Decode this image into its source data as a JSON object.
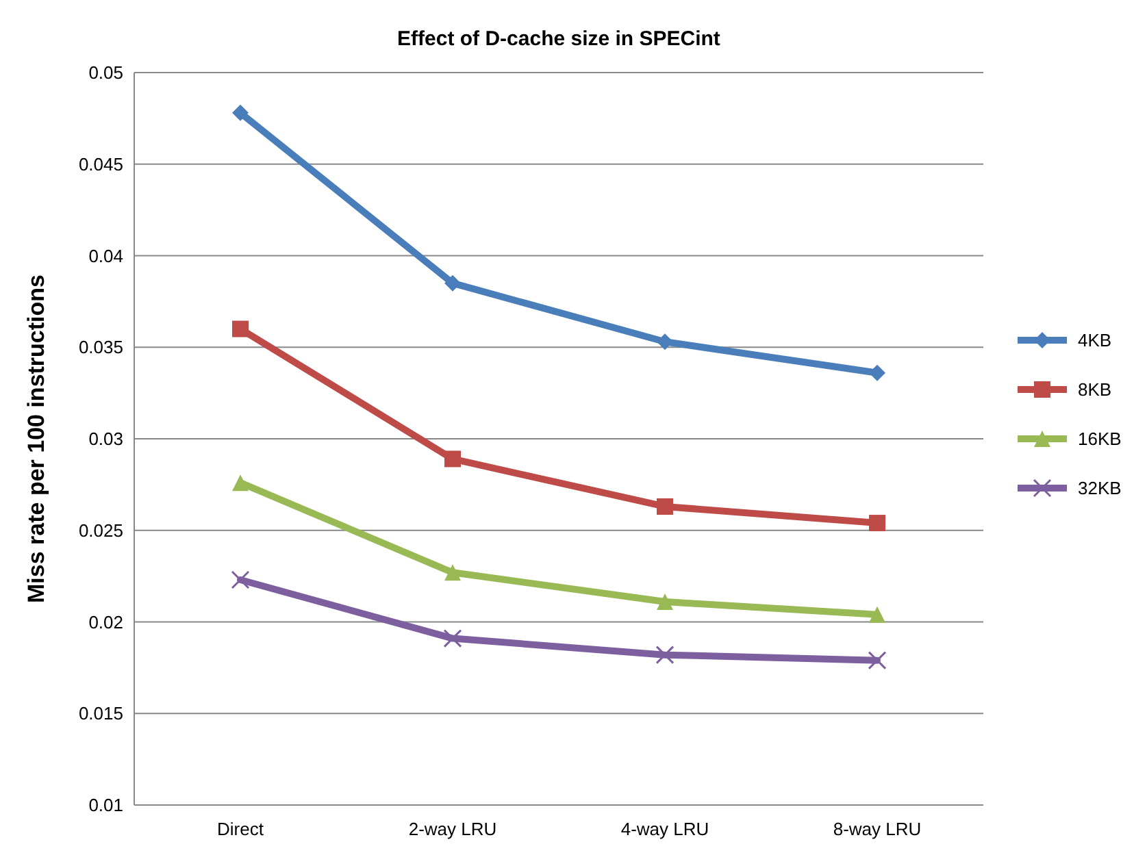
{
  "chart_data": {
    "type": "line",
    "title": "Effect of D-cache size in SPECint",
    "ylabel": "Miss rate per 100 instructions",
    "categories": [
      "Direct",
      "2-way LRU",
      "4-way LRU",
      "8-way LRU"
    ],
    "series": [
      {
        "name": "4KB",
        "color": "#4a7ebb",
        "marker": "diamond",
        "values": [
          0.0478,
          0.0385,
          0.0353,
          0.0336
        ]
      },
      {
        "name": "8KB",
        "color": "#be4b48",
        "marker": "square",
        "values": [
          0.036,
          0.0289,
          0.0263,
          0.0254
        ]
      },
      {
        "name": "16KB",
        "color": "#98b954",
        "marker": "triangle",
        "values": [
          0.0276,
          0.0227,
          0.0211,
          0.0204
        ]
      },
      {
        "name": "32KB",
        "color": "#7d5fa0",
        "marker": "cross",
        "values": [
          0.0223,
          0.0191,
          0.0182,
          0.0179
        ]
      }
    ],
    "ylim": [
      0.01,
      0.05
    ],
    "yticks": [
      0.01,
      0.015,
      0.02,
      0.025,
      0.03,
      0.035,
      0.04,
      0.045,
      0.05
    ],
    "grid": "y",
    "legend": "right"
  }
}
